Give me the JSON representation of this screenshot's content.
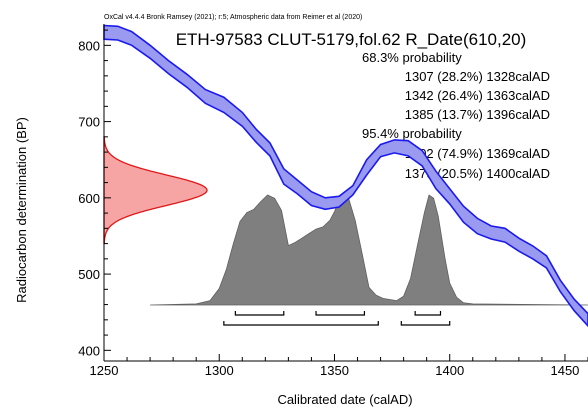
{
  "chart_data": {
    "type": "area",
    "credit": "OxCal v4.4.4 Bronk Ramsey (2021); r:5; Atmospheric data from Reimer et al (2020)",
    "title": "ETH-97583 CLUT-5179,fol.62 R_Date(610,20)",
    "xlabel": "Calibrated date (calAD)",
    "ylabel": "Radiocarbon determination (BP)",
    "xlim": [
      1250,
      1460
    ],
    "ylim": [
      386,
      828
    ],
    "x_ticks": [
      1250,
      1300,
      1350,
      1400,
      1450
    ],
    "y_ticks": [
      400,
      500,
      600,
      700,
      800
    ],
    "probability_groups": [
      {
        "label": "68.3% probability",
        "ranges": [
          {
            "text": "1307 (28.2%) 1328calAD",
            "from": 1307,
            "to": 1328,
            "percent": 28.2
          },
          {
            "text": "1342 (26.4%) 1363calAD",
            "from": 1342,
            "to": 1363,
            "percent": 26.4
          },
          {
            "text": "1385 (13.7%) 1396calAD",
            "from": 1385,
            "to": 1396,
            "percent": 13.7
          }
        ]
      },
      {
        "label": "95.4% probability",
        "ranges": [
          {
            "text": "1302 (74.9%) 1369calAD",
            "from": 1302,
            "to": 1369,
            "percent": 74.9
          },
          {
            "text": "1379 (20.5%) 1400calAD",
            "from": 1379,
            "to": 1400,
            "percent": 20.5
          }
        ]
      }
    ],
    "radiocarbon_date": {
      "mean": 610,
      "sd": 20
    },
    "calibration_curve": {
      "x": [
        1250,
        1256,
        1262,
        1270,
        1278,
        1286,
        1294,
        1302,
        1310,
        1316,
        1322,
        1328,
        1334,
        1340,
        1346,
        1352,
        1358,
        1364,
        1370,
        1376,
        1382,
        1388,
        1394,
        1400,
        1406,
        1412,
        1418,
        1424,
        1430,
        1436,
        1442,
        1448,
        1454,
        1460
      ],
      "upper": [
        826,
        825,
        818,
        800,
        780,
        762,
        742,
        732,
        712,
        690,
        672,
        638,
        623,
        608,
        600,
        602,
        616,
        650,
        670,
        676,
        675,
        662,
        635,
        612,
        589,
        573,
        563,
        560,
        547,
        537,
        524,
        492,
        467,
        448
      ],
      "lower": [
        808,
        807,
        800,
        783,
        763,
        745,
        724,
        712,
        694,
        673,
        655,
        618,
        605,
        590,
        585,
        588,
        604,
        630,
        654,
        659,
        655,
        642,
        612,
        592,
        568,
        553,
        546,
        542,
        530,
        520,
        508,
        477,
        452,
        432
      ]
    },
    "posterior_density": {
      "x": [
        1270,
        1290,
        1296,
        1300,
        1303,
        1306,
        1309,
        1312,
        1315,
        1318,
        1321,
        1324,
        1327,
        1330,
        1333,
        1336,
        1339,
        1342,
        1345,
        1348,
        1350,
        1353,
        1356,
        1359,
        1362,
        1365,
        1368,
        1371,
        1374,
        1377,
        1380,
        1383,
        1386,
        1389,
        1391,
        1393,
        1395,
        1398,
        1400,
        1403,
        1406,
        1410,
        1460
      ],
      "density": [
        0,
        0.01,
        0.04,
        0.15,
        0.32,
        0.55,
        0.76,
        0.84,
        0.87,
        0.94,
        1.0,
        0.97,
        0.86,
        0.54,
        0.57,
        0.61,
        0.65,
        0.69,
        0.71,
        0.77,
        0.85,
        1.0,
        0.98,
        0.77,
        0.47,
        0.16,
        0.09,
        0.06,
        0.05,
        0.04,
        0.08,
        0.24,
        0.54,
        0.84,
        1.0,
        0.97,
        0.81,
        0.42,
        0.2,
        0.07,
        0.02,
        0.01,
        0
      ]
    }
  }
}
